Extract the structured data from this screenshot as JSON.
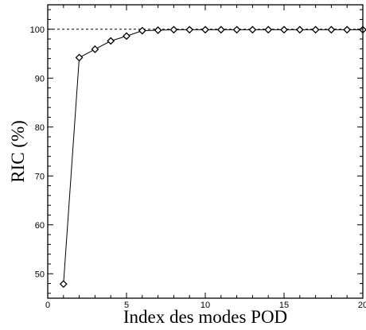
{
  "chart_data": {
    "type": "line",
    "xlabel": "Index des modes POD",
    "ylabel": "RIC (%)",
    "xlim": [
      0,
      20
    ],
    "ylim": [
      45,
      105
    ],
    "x_ticks_major": [
      0,
      5,
      10,
      15,
      20
    ],
    "y_ticks_major": [
      50,
      60,
      70,
      80,
      90,
      100
    ],
    "x_ticks_minor_step": 1,
    "y_ticks_minor_step": 2,
    "grid": false,
    "marker": "diamond",
    "line_color": "#000000",
    "reference_line": {
      "y": 100,
      "style": "dashed"
    },
    "series": [
      {
        "x": [
          1,
          2,
          3,
          4,
          5,
          6,
          7,
          8,
          9,
          10,
          11,
          12,
          13,
          14,
          15,
          16,
          17,
          18,
          19,
          20
        ],
        "values": [
          47.9,
          94.2,
          95.9,
          97.6,
          98.6,
          99.7,
          99.8,
          99.9,
          99.9,
          99.9,
          99.9,
          99.9,
          99.9,
          99.9,
          99.9,
          99.9,
          99.9,
          99.9,
          99.9,
          99.9
        ]
      }
    ]
  }
}
